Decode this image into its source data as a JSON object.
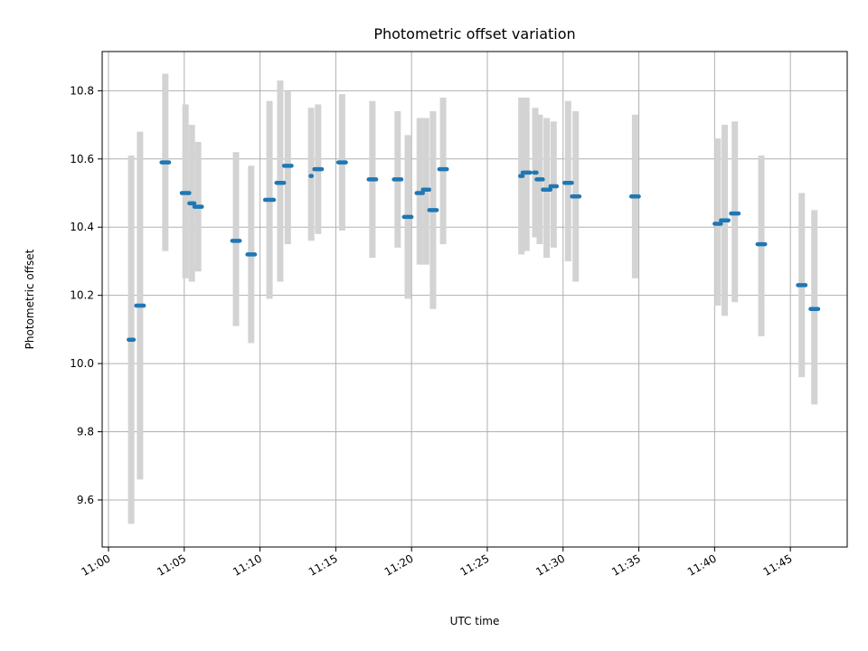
{
  "chart_data": {
    "type": "scatter",
    "title": "Photometric offset variation",
    "xlabel": "UTC time",
    "ylabel": "Photometric offset",
    "xlim": [
      "10:59:35",
      "11:48:45"
    ],
    "ylim": [
      9.462,
      10.915
    ],
    "grid": true,
    "x_ticks": [
      "11:00",
      "11:05",
      "11:10",
      "11:15",
      "11:20",
      "11:25",
      "11:30",
      "11:35",
      "11:40",
      "11:45"
    ],
    "y_ticks": [
      9.6,
      9.8,
      10.0,
      10.2,
      10.4,
      10.6,
      10.8
    ],
    "y_tick_labels": [
      "9.6",
      "9.8",
      "10.0",
      "10.2",
      "10.4",
      "10.6",
      "10.8"
    ],
    "colors": {
      "marker": "#1f77b4",
      "band": "#d3d3d3",
      "grid": "#b0b0b0"
    },
    "points": [
      {
        "x_start": "11:01:20",
        "x_end": "11:01:40",
        "y": 10.07,
        "y_low": 9.53,
        "y_high": 10.61
      },
      {
        "x_start": "11:01:50",
        "x_end": "11:02:20",
        "y": 10.17,
        "y_low": 9.66,
        "y_high": 10.68
      },
      {
        "x_start": "11:03:30",
        "x_end": "11:04:00",
        "y": 10.59,
        "y_low": 10.33,
        "y_high": 10.85
      },
      {
        "x_start": "11:04:50",
        "x_end": "11:05:20",
        "y": 10.5,
        "y_low": 10.25,
        "y_high": 10.76
      },
      {
        "x_start": "11:05:20",
        "x_end": "11:05:40",
        "y": 10.47,
        "y_low": 10.24,
        "y_high": 10.7
      },
      {
        "x_start": "11:05:40",
        "x_end": "11:06:10",
        "y": 10.46,
        "y_low": 10.27,
        "y_high": 10.65
      },
      {
        "x_start": "11:08:10",
        "x_end": "11:08:40",
        "y": 10.36,
        "y_low": 10.11,
        "y_high": 10.62
      },
      {
        "x_start": "11:09:10",
        "x_end": "11:09:40",
        "y": 10.32,
        "y_low": 10.06,
        "y_high": 10.58
      },
      {
        "x_start": "11:10:20",
        "x_end": "11:10:55",
        "y": 10.48,
        "y_low": 10.19,
        "y_high": 10.77
      },
      {
        "x_start": "11:11:05",
        "x_end": "11:11:35",
        "y": 10.53,
        "y_low": 10.24,
        "y_high": 10.83
      },
      {
        "x_start": "11:11:35",
        "x_end": "11:12:05",
        "y": 10.58,
        "y_low": 10.35,
        "y_high": 10.8
      },
      {
        "x_start": "11:13:20",
        "x_end": "11:13:25",
        "y": 10.55,
        "y_low": 10.36,
        "y_high": 10.75
      },
      {
        "x_start": "11:13:35",
        "x_end": "11:14:05",
        "y": 10.57,
        "y_low": 10.38,
        "y_high": 10.76
      },
      {
        "x_start": "11:15:10",
        "x_end": "11:15:40",
        "y": 10.59,
        "y_low": 10.39,
        "y_high": 10.79
      },
      {
        "x_start": "11:17:10",
        "x_end": "11:17:40",
        "y": 10.54,
        "y_low": 10.31,
        "y_high": 10.77
      },
      {
        "x_start": "11:18:50",
        "x_end": "11:19:20",
        "y": 10.54,
        "y_low": 10.34,
        "y_high": 10.74
      },
      {
        "x_start": "11:19:30",
        "x_end": "11:20:00",
        "y": 10.43,
        "y_low": 10.19,
        "y_high": 10.67
      },
      {
        "x_start": "11:20:20",
        "x_end": "11:20:45",
        "y": 10.5,
        "y_low": 10.29,
        "y_high": 10.72
      },
      {
        "x_start": "11:20:45",
        "x_end": "11:21:10",
        "y": 10.51,
        "y_low": 10.29,
        "y_high": 10.72
      },
      {
        "x_start": "11:21:10",
        "x_end": "11:21:40",
        "y": 10.45,
        "y_low": 10.16,
        "y_high": 10.74
      },
      {
        "x_start": "11:21:50",
        "x_end": "11:22:20",
        "y": 10.57,
        "y_low": 10.35,
        "y_high": 10.78
      },
      {
        "x_start": "11:27:10",
        "x_end": "11:27:20",
        "y": 10.55,
        "y_low": 10.32,
        "y_high": 10.78
      },
      {
        "x_start": "11:27:20",
        "x_end": "11:27:50",
        "y": 10.56,
        "y_low": 10.33,
        "y_high": 10.78
      },
      {
        "x_start": "11:28:05",
        "x_end": "11:28:15",
        "y": 10.56,
        "y_low": 10.37,
        "y_high": 10.75
      },
      {
        "x_start": "11:28:15",
        "x_end": "11:28:40",
        "y": 10.54,
        "y_low": 10.35,
        "y_high": 10.73
      },
      {
        "x_start": "11:28:40",
        "x_end": "11:29:10",
        "y": 10.51,
        "y_low": 10.31,
        "y_high": 10.72
      },
      {
        "x_start": "11:29:10",
        "x_end": "11:29:35",
        "y": 10.52,
        "y_low": 10.34,
        "y_high": 10.71
      },
      {
        "x_start": "11:30:05",
        "x_end": "11:30:35",
        "y": 10.53,
        "y_low": 10.3,
        "y_high": 10.77
      },
      {
        "x_start": "11:30:35",
        "x_end": "11:31:05",
        "y": 10.49,
        "y_low": 10.24,
        "y_high": 10.74
      },
      {
        "x_start": "11:34:30",
        "x_end": "11:35:00",
        "y": 10.49,
        "y_low": 10.25,
        "y_high": 10.73
      },
      {
        "x_start": "11:40:00",
        "x_end": "11:40:25",
        "y": 10.41,
        "y_low": 10.17,
        "y_high": 10.66
      },
      {
        "x_start": "11:40:25",
        "x_end": "11:40:55",
        "y": 10.42,
        "y_low": 10.14,
        "y_high": 10.7
      },
      {
        "x_start": "11:41:05",
        "x_end": "11:41:35",
        "y": 10.44,
        "y_low": 10.18,
        "y_high": 10.71
      },
      {
        "x_start": "11:42:50",
        "x_end": "11:43:20",
        "y": 10.35,
        "y_low": 10.08,
        "y_high": 10.61
      },
      {
        "x_start": "11:45:30",
        "x_end": "11:46:00",
        "y": 10.23,
        "y_low": 9.96,
        "y_high": 10.5
      },
      {
        "x_start": "11:46:20",
        "x_end": "11:46:50",
        "y": 10.16,
        "y_low": 9.88,
        "y_high": 10.45
      }
    ]
  }
}
